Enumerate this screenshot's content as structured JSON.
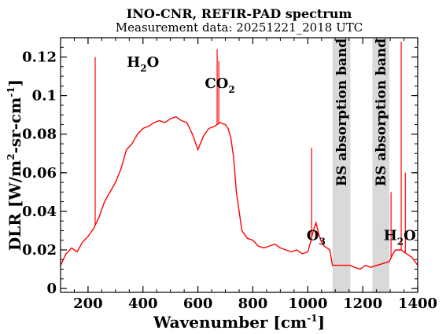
{
  "chart_data": {
    "type": "line",
    "title": "INO-CNR, REFIR-PAD spectrum",
    "subtitle": "Measurement data: 20251221_2018 UTC",
    "xlabel": "Wavenumber [cm",
    "xlabel_sup": "-1",
    "xlabel_close": "]",
    "ylabel_main": "DLR [W/m",
    "ylabel_sup1": "2",
    "ylabel_mid": "-sr-cm",
    "ylabel_sup2": "-1",
    "ylabel_close": "]",
    "xlim": [
      100,
      1400
    ],
    "ylim": [
      -0.002,
      0.13
    ],
    "xticks": [
      200,
      400,
      600,
      800,
      1000,
      1200,
      1400
    ],
    "xtick_labels": [
      "200",
      "400",
      "600",
      "800",
      "1000",
      "1200",
      "1400"
    ],
    "yticks": [
      0,
      0.02,
      0.04,
      0.06,
      0.08,
      0.1,
      0.12
    ],
    "ytick_labels": [
      "0",
      "0.02",
      "0.04",
      "0.06",
      "0.08",
      "0.1",
      "0.12"
    ],
    "grid": false,
    "line_color": "#ff0000",
    "band_color": "#d9d9d9",
    "shaded_bands": [
      {
        "label": "BS absorption band",
        "x": [
          1090,
          1155
        ]
      },
      {
        "label": "BS absorption band",
        "x": [
          1235,
          1297
        ]
      }
    ],
    "annotations": [
      {
        "base": "H",
        "sub": "2",
        "tail": "O",
        "x": 400,
        "y": 0.115
      },
      {
        "base": "CO",
        "sub": "2",
        "tail": "",
        "x": 680,
        "y": 0.104
      },
      {
        "base": "O",
        "sub": "3",
        "tail": "",
        "x": 1030,
        "y": 0.025
      },
      {
        "base": "H",
        "sub": "2",
        "tail": "O",
        "x": 1335,
        "y": 0.025
      }
    ],
    "series": [
      {
        "x": [
          100,
          120,
          140,
          160,
          180,
          200,
          220,
          240,
          260,
          280,
          300,
          320,
          340,
          360,
          380,
          400,
          420,
          440,
          460,
          480,
          500,
          520,
          540,
          560,
          580,
          600,
          620,
          640,
          660,
          680,
          700,
          710,
          720,
          730,
          740,
          750,
          760,
          780,
          800,
          820,
          840,
          860,
          880,
          900,
          920,
          940,
          960,
          980,
          1000,
          1010,
          1020,
          1030,
          1040,
          1050,
          1060,
          1080,
          1090,
          1155,
          1170,
          1190,
          1210,
          1230,
          1297,
          1310,
          1320,
          1340,
          1360,
          1380,
          1400
        ],
        "y": [
          0.012,
          0.018,
          0.021,
          0.019,
          0.024,
          0.027,
          0.031,
          0.037,
          0.045,
          0.05,
          0.055,
          0.062,
          0.072,
          0.075,
          0.08,
          0.083,
          0.084,
          0.086,
          0.087,
          0.086,
          0.088,
          0.089,
          0.087,
          0.086,
          0.08,
          0.072,
          0.079,
          0.083,
          0.084,
          0.086,
          0.085,
          0.083,
          0.078,
          0.068,
          0.05,
          0.04,
          0.03,
          0.026,
          0.025,
          0.022,
          0.021,
          0.022,
          0.023,
          0.021,
          0.02,
          0.019,
          0.02,
          0.018,
          0.019,
          0.024,
          0.03,
          0.034,
          0.028,
          0.024,
          0.022,
          0.02,
          0.012,
          0.012,
          0.011,
          0.01,
          0.012,
          0.011,
          0.014,
          0.018,
          0.02,
          0.02,
          0.018,
          0.016,
          0.012
        ]
      }
    ],
    "spikes": [
      {
        "x": 226,
        "y": 0.12
      },
      {
        "x": 670,
        "y": 0.124
      },
      {
        "x": 676,
        "y": 0.118
      },
      {
        "x": 1014,
        "y": 0.073
      },
      {
        "x": 1340,
        "y": 0.128
      },
      {
        "x": 1355,
        "y": 0.06
      },
      {
        "x": 1303,
        "y": 0.05
      }
    ]
  }
}
